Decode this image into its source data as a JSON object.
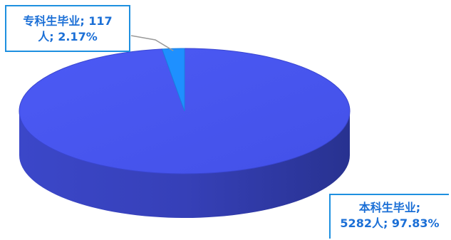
{
  "chart_data": {
    "type": "pie",
    "style": "3d",
    "title": "",
    "slices": [
      {
        "label": "本科生毕业",
        "value": 5282,
        "percent": "97.83%",
        "color": "#4a57f2",
        "label_lines": [
          "本科生毕业;",
          "5282人; 97.83%"
        ]
      },
      {
        "label": "专科生毕业",
        "value": 117,
        "percent": "2.17%",
        "color": "#1e90ff",
        "label_lines": [
          "专科生毕业; 117",
          "人; 2.17%"
        ]
      }
    ]
  }
}
